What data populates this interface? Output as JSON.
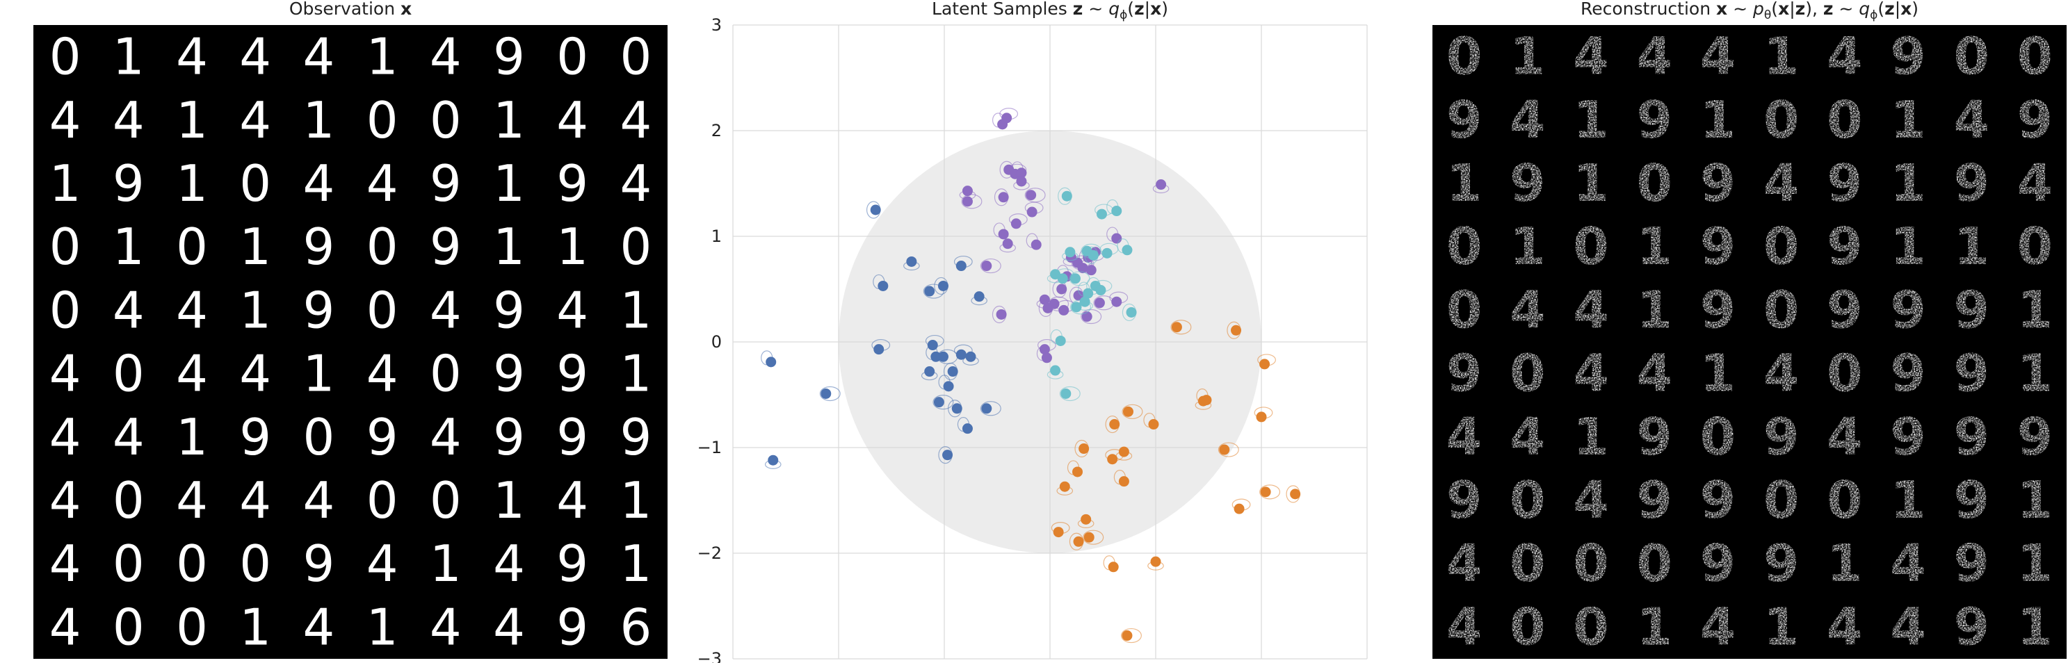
{
  "panels": {
    "observation": {
      "title": "Observation",
      "title_symbol": "x",
      "digits": [
        [
          "0",
          "1",
          "4",
          "4",
          "4",
          "1",
          "4",
          "9",
          "0",
          "0"
        ],
        [
          "4",
          "4",
          "1",
          "4",
          "1",
          "0",
          "0",
          "1",
          "4",
          "4"
        ],
        [
          "1",
          "9",
          "1",
          "0",
          "4",
          "4",
          "9",
          "1",
          "9",
          "4"
        ],
        [
          "0",
          "1",
          "0",
          "1",
          "9",
          "0",
          "9",
          "1",
          "1",
          "0"
        ],
        [
          "0",
          "4",
          "4",
          "1",
          "9",
          "0",
          "4",
          "9",
          "4",
          "1"
        ],
        [
          "4",
          "0",
          "4",
          "4",
          "1",
          "4",
          "0",
          "9",
          "9",
          "1"
        ],
        [
          "4",
          "4",
          "1",
          "9",
          "0",
          "9",
          "4",
          "9",
          "9",
          "9"
        ],
        [
          "4",
          "0",
          "4",
          "4",
          "4",
          "0",
          "0",
          "1",
          "4",
          "1"
        ],
        [
          "4",
          "0",
          "0",
          "0",
          "9",
          "4",
          "1",
          "4",
          "9",
          "1"
        ],
        [
          "4",
          "0",
          "0",
          "1",
          "4",
          "1",
          "4",
          "4",
          "9",
          "6"
        ]
      ]
    },
    "latent": {
      "title_prefix": "Latent Samples",
      "title_formula_z": "z",
      "title_formula_rest": "~",
      "title_q": "q",
      "title_sub": "ϕ",
      "title_cond_z": "z",
      "title_cond_x": "x"
    },
    "reconstruction": {
      "title": "Reconstruction",
      "title_x": "x",
      "title_p": "p",
      "title_sub_theta": "θ",
      "title_z": "z",
      "title_q": "q",
      "title_sub_phi": "ϕ",
      "digits": [
        [
          "0",
          "1",
          "4",
          "4",
          "4",
          "1",
          "4",
          "9",
          "0",
          "0"
        ],
        [
          "9",
          "4",
          "1",
          "9",
          "1",
          "0",
          "0",
          "1",
          "4",
          "9"
        ],
        [
          "1",
          "9",
          "1",
          "0",
          "9",
          "4",
          "9",
          "1",
          "9",
          "4"
        ],
        [
          "0",
          "1",
          "0",
          "1",
          "9",
          "0",
          "9",
          "1",
          "1",
          "0"
        ],
        [
          "0",
          "4",
          "4",
          "1",
          "9",
          "0",
          "9",
          "9",
          "9",
          "1"
        ],
        [
          "9",
          "0",
          "4",
          "4",
          "1",
          "4",
          "0",
          "9",
          "9",
          "1"
        ],
        [
          "4",
          "4",
          "1",
          "9",
          "0",
          "9",
          "4",
          "9",
          "9",
          "9"
        ],
        [
          "9",
          "0",
          "4",
          "9",
          "9",
          "0",
          "0",
          "1",
          "9",
          "1"
        ],
        [
          "4",
          "0",
          "0",
          "0",
          "9",
          "9",
          "1",
          "4",
          "9",
          "1"
        ],
        [
          "4",
          "0",
          "0",
          "1",
          "4",
          "1",
          "4",
          "4",
          "9",
          "1"
        ]
      ]
    }
  },
  "chart_data": {
    "type": "scatter",
    "xlim": [
      -3,
      3
    ],
    "ylim": [
      -3,
      3
    ],
    "xticks": [],
    "yticks": [
      -3,
      -2,
      -1,
      0,
      1,
      2,
      3
    ],
    "grid": true,
    "prior_circle_radius": 2,
    "colors": {
      "blue": "#4c72b0",
      "purple": "#8c6bc2",
      "cyan": "#6bbfca",
      "orange": "#e0812c",
      "prior": "#ececec"
    },
    "series": [
      {
        "color": "#4c72b0",
        "points": [
          [
            -2.64,
            -0.19
          ],
          [
            -2.62,
            -1.12
          ],
          [
            -2.12,
            -0.49
          ],
          [
            -1.65,
            1.25
          ],
          [
            -1.62,
            -0.07
          ],
          [
            -1.58,
            0.53
          ],
          [
            -1.31,
            0.76
          ],
          [
            -1.14,
            0.48
          ],
          [
            -1.01,
            0.53
          ],
          [
            -1.11,
            -0.03
          ],
          [
            -1.08,
            -0.14
          ],
          [
            -1.14,
            -0.28
          ],
          [
            -1.01,
            -0.14
          ],
          [
            -0.92,
            -0.28
          ],
          [
            -0.84,
            -0.12
          ],
          [
            -0.96,
            -0.42
          ],
          [
            -0.75,
            -0.14
          ],
          [
            -1.05,
            -0.57
          ],
          [
            -0.88,
            -0.63
          ],
          [
            -0.84,
            0.72
          ],
          [
            -0.78,
            -0.82
          ],
          [
            -0.67,
            0.43
          ],
          [
            -0.6,
            -0.63
          ],
          [
            -0.97,
            -1.07
          ]
        ]
      },
      {
        "color": "#8c6bc2",
        "points": [
          [
            -0.41,
            2.12
          ],
          [
            -0.45,
            2.06
          ],
          [
            -0.78,
            1.43
          ],
          [
            -0.78,
            1.33
          ],
          [
            -0.39,
            1.63
          ],
          [
            -0.33,
            1.59
          ],
          [
            -0.27,
            1.6
          ],
          [
            -0.27,
            1.52
          ],
          [
            -0.18,
            1.39
          ],
          [
            -0.44,
            1.37
          ],
          [
            -0.32,
            1.12
          ],
          [
            -0.44,
            1.02
          ],
          [
            -0.4,
            0.93
          ],
          [
            -0.6,
            0.72
          ],
          [
            -0.46,
            0.26
          ],
          [
            -0.17,
            1.23
          ],
          [
            -0.13,
            0.92
          ],
          [
            -0.05,
            0.4
          ],
          [
            0.04,
            0.36
          ],
          [
            0.11,
            0.5
          ],
          [
            0.13,
            0.3
          ],
          [
            0.16,
            0.62
          ],
          [
            0.2,
            0.8
          ],
          [
            0.26,
            0.75
          ],
          [
            0.27,
            0.44
          ],
          [
            0.31,
            0.7
          ],
          [
            0.39,
            0.68
          ],
          [
            0.43,
            0.85
          ],
          [
            0.47,
            0.37
          ],
          [
            0.36,
            0.8
          ],
          [
            0.63,
            0.38
          ],
          [
            0.63,
            0.98
          ],
          [
            1.05,
            1.49
          ],
          [
            0.35,
            0.24
          ],
          [
            -0.02,
            0.32
          ],
          [
            -0.05,
            -0.07
          ],
          [
            -0.03,
            -0.15
          ]
        ]
      },
      {
        "color": "#6bbfca",
        "points": [
          [
            0.16,
            1.38
          ],
          [
            0.49,
            1.21
          ],
          [
            0.63,
            1.24
          ],
          [
            0.19,
            0.85
          ],
          [
            0.35,
            0.86
          ],
          [
            0.41,
            0.82
          ],
          [
            0.54,
            0.84
          ],
          [
            0.73,
            0.87
          ],
          [
            0.05,
            0.64
          ],
          [
            0.24,
            0.6
          ],
          [
            0.43,
            0.53
          ],
          [
            0.48,
            0.49
          ],
          [
            0.36,
            0.46
          ],
          [
            0.33,
            0.38
          ],
          [
            0.25,
            0.33
          ],
          [
            0.77,
            0.28
          ],
          [
            0.12,
            0.6
          ],
          [
            0.1,
            0.01
          ],
          [
            0.05,
            -0.27
          ],
          [
            0.15,
            -0.49
          ]
        ]
      },
      {
        "color": "#e0812c",
        "points": [
          [
            1.2,
            0.14
          ],
          [
            1.76,
            0.11
          ],
          [
            2.03,
            -0.21
          ],
          [
            1.48,
            -0.55
          ],
          [
            1.45,
            -0.56
          ],
          [
            0.74,
            -0.66
          ],
          [
            0.61,
            -0.78
          ],
          [
            2.0,
            -0.71
          ],
          [
            0.98,
            -0.78
          ],
          [
            0.7,
            -1.04
          ],
          [
            1.65,
            -1.02
          ],
          [
            0.32,
            -1.01
          ],
          [
            0.59,
            -1.11
          ],
          [
            0.26,
            -1.23
          ],
          [
            0.14,
            -1.37
          ],
          [
            2.04,
            -1.42
          ],
          [
            2.32,
            -1.44
          ],
          [
            1.79,
            -1.58
          ],
          [
            0.7,
            -1.32
          ],
          [
            0.34,
            -1.68
          ],
          [
            0.37,
            -1.85
          ],
          [
            0.27,
            -1.89
          ],
          [
            0.08,
            -1.8
          ],
          [
            0.6,
            -2.13
          ],
          [
            1.0,
            -2.08
          ],
          [
            0.73,
            -2.78
          ]
        ]
      }
    ]
  }
}
